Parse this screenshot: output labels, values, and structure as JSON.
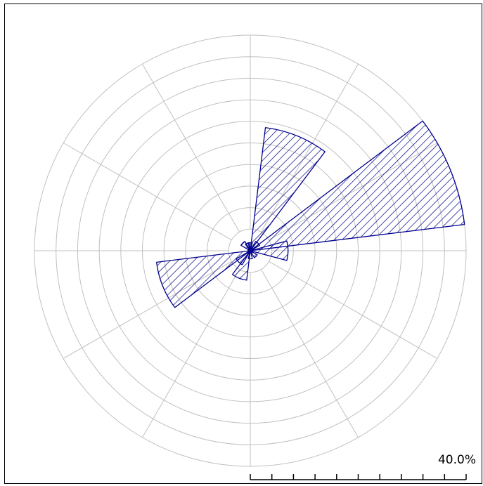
{
  "chart_data": {
    "type": "wind-rose",
    "scale_label": "40.0%",
    "r_max_percent": 40,
    "ring_step_percent": 4,
    "spoke_count": 12,
    "grid": true,
    "petal_width_deg": 30,
    "petals": [
      {
        "direction_deg": 22,
        "value": 23.0
      },
      {
        "direction_deg": 68,
        "value": 40.0
      },
      {
        "direction_deg": 0,
        "value": 1.5
      },
      {
        "direction_deg": 45,
        "value": 2.0
      },
      {
        "direction_deg": 90,
        "value": 7.0
      },
      {
        "direction_deg": 135,
        "value": 1.5
      },
      {
        "direction_deg": 180,
        "value": 1.5
      },
      {
        "direction_deg": 202,
        "value": 5.5
      },
      {
        "direction_deg": 225,
        "value": 3.0
      },
      {
        "direction_deg": 248,
        "value": 17.5
      },
      {
        "direction_deg": 315,
        "value": 2.0
      },
      {
        "direction_deg": 338,
        "value": 1.5
      }
    ],
    "colors": {
      "petal": "#00008b",
      "grid": "#c0c0c0",
      "scale": "#000000"
    }
  }
}
